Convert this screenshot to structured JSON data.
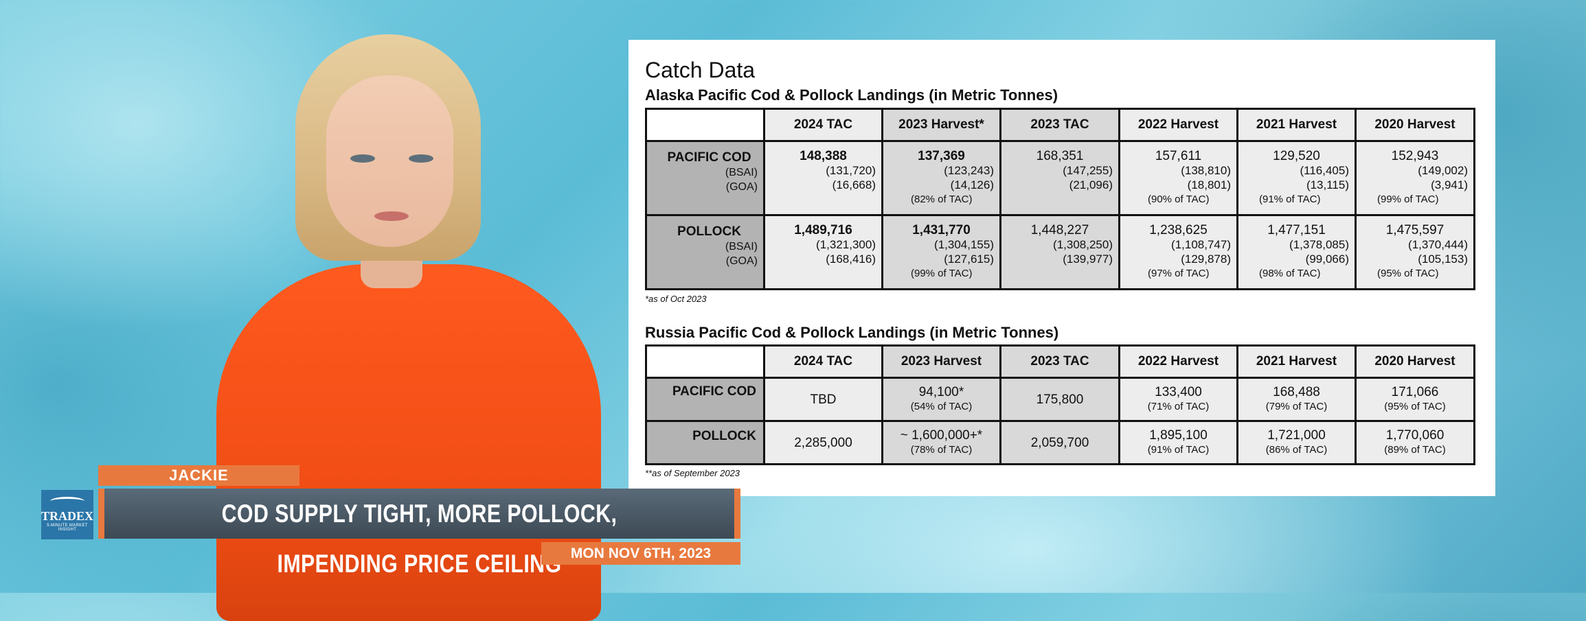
{
  "panel": {
    "title": "Catch Data"
  },
  "alaska": {
    "title": "Alaska Pacific Cod & Pollock Landings (in Metric Tonnes)",
    "headers": [
      "2024 TAC",
      "2023 Harvest*",
      "2023 TAC",
      "2022 Harvest",
      "2021 Harvest",
      "2020 Harvest"
    ],
    "rows": [
      {
        "name": "PACIFIC COD",
        "sub1": "(BSAI)",
        "sub2": "(GOA)",
        "cells": [
          {
            "main": "148,388",
            "a": "(131,720)",
            "b": "(16,668)",
            "pct": ""
          },
          {
            "main": "137,369",
            "a": "(123,243)",
            "b": "(14,126)",
            "pct": "(82% of TAC)"
          },
          {
            "main": "168,351",
            "a": "(147,255)",
            "b": "(21,096)",
            "pct": ""
          },
          {
            "main": "157,611",
            "a": "(138,810)",
            "b": "(18,801)",
            "pct": "(90% of TAC)"
          },
          {
            "main": "129,520",
            "a": "(116,405)",
            "b": "(13,115)",
            "pct": "(91% of TAC)"
          },
          {
            "main": "152,943",
            "a": "(149,002)",
            "b": "(3,941)",
            "pct": "(99% of TAC)"
          }
        ]
      },
      {
        "name": "POLLOCK",
        "sub1": "(BSAI)",
        "sub2": "(GOA)",
        "cells": [
          {
            "main": "1,489,716",
            "a": "(1,321,300)",
            "b": "(168,416)",
            "pct": ""
          },
          {
            "main": "1,431,770",
            "a": "(1,304,155)",
            "b": "(127,615)",
            "pct": "(99% of TAC)"
          },
          {
            "main": "1,448,227",
            "a": "(1,308,250)",
            "b": "(139,977)",
            "pct": ""
          },
          {
            "main": "1,238,625",
            "a": "(1,108,747)",
            "b": "(129,878)",
            "pct": "(97% of TAC)"
          },
          {
            "main": "1,477,151",
            "a": "(1,378,085)",
            "b": "(99,066)",
            "pct": "(98% of TAC)"
          },
          {
            "main": "1,475,597",
            "a": "(1,370,444)",
            "b": "(105,153)",
            "pct": "(95% of TAC)"
          }
        ]
      }
    ],
    "footnote": "*as of Oct 2023"
  },
  "russia": {
    "title": "Russia Pacific Cod & Pollock Landings (in Metric Tonnes)",
    "headers": [
      "2024 TAC",
      "2023 Harvest",
      "2023 TAC",
      "2022 Harvest",
      "2021 Harvest",
      "2020 Harvest"
    ],
    "rows": [
      {
        "name": "PACIFIC COD",
        "cells": [
          {
            "main": "TBD",
            "pct": ""
          },
          {
            "main": "94,100*",
            "pct": "(54% of TAC)"
          },
          {
            "main": "175,800",
            "pct": ""
          },
          {
            "main": "133,400",
            "pct": "(71% of TAC)"
          },
          {
            "main": "168,488",
            "pct": "(79% of TAC)"
          },
          {
            "main": "171,066",
            "pct": "(95% of TAC)"
          }
        ]
      },
      {
        "name": "POLLOCK",
        "cells": [
          {
            "main": "2,285,000",
            "pct": ""
          },
          {
            "main": "~ 1,600,000+*",
            "pct": "(78% of TAC)"
          },
          {
            "main": "2,059,700",
            "pct": ""
          },
          {
            "main": "1,895,100",
            "pct": "(91% of TAC)"
          },
          {
            "main": "1,721,000",
            "pct": "(86% of TAC)"
          },
          {
            "main": "1,770,060",
            "pct": "(89% of TAC)"
          }
        ]
      }
    ],
    "footnote": "**as of September 2023"
  },
  "lower_third": {
    "name": "JACKIE",
    "headline": "COD SUPPLY TIGHT, MORE POLLOCK, IMPENDING PRICE CEILING",
    "date": "MON NOV 6TH, 2023",
    "logo_word": "TRADEX",
    "logo_tag": "5-MINUTE MARKET INSIGHT"
  },
  "colors": {
    "accent": "#e8793e",
    "bar": "#3d4a55",
    "sweater": "#ef4c14",
    "logo": "#2b76a8"
  }
}
